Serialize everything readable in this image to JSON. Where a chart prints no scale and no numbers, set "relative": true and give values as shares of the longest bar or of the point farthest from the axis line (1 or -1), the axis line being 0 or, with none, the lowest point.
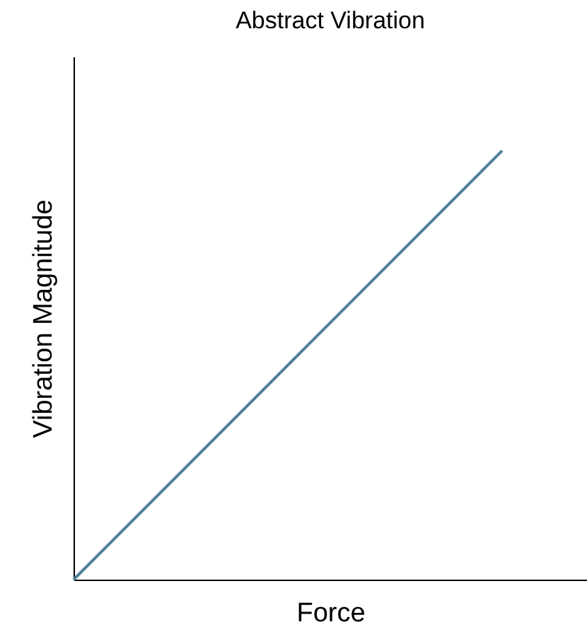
{
  "chart_data": {
    "type": "line",
    "title": "Abstract Vibration",
    "xlabel": "Force",
    "ylabel": "Vibration Magnitude",
    "relative": true,
    "categories": [
      null,
      null
    ],
    "series": [
      {
        "color": "#4d8196",
        "values": [
          0,
          1
        ]
      }
    ],
    "grid": false,
    "marker": "none"
  }
}
